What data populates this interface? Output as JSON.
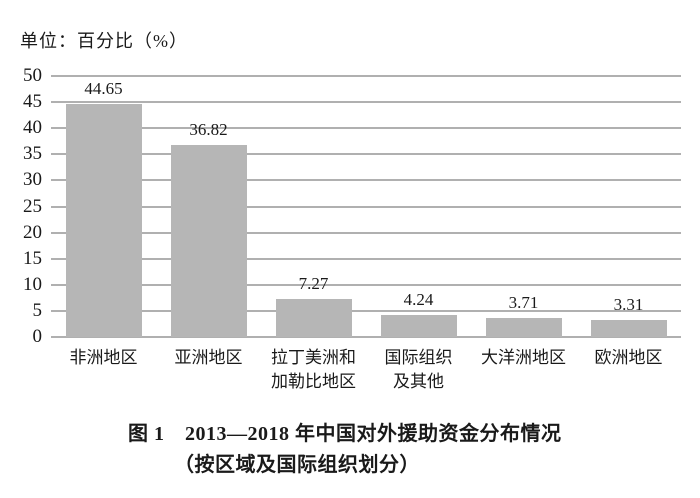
{
  "unit_label": "单位：百分比（%）",
  "caption": {
    "line1": "图 1　2013—2018 年中国对外援助资金分布情况",
    "line2": "（按区域及国际组织划分）"
  },
  "chart_data": {
    "type": "bar",
    "title": "图 1 2013—2018 年中国对外援助资金分布情况（按区域及国际组织划分）",
    "unit_label": "单位：百分比（%）",
    "categories": [
      "非洲地区",
      "亚洲地区",
      "拉丁美洲和\n加勒比地区",
      "国际组织\n及其他",
      "大洋洲地区",
      "欧洲地区"
    ],
    "values": [
      44.65,
      36.82,
      7.27,
      4.24,
      3.71,
      3.31
    ],
    "value_labels": [
      "44.65",
      "36.82",
      "7.27",
      "4.24",
      "3.71",
      "3.31"
    ],
    "ylabel": "",
    "xlabel": "",
    "ylim": [
      0,
      50
    ],
    "ytick_step": 5,
    "ytick_labels": [
      "0",
      "5",
      "10",
      "15",
      "20",
      "25",
      "30",
      "35",
      "40",
      "45",
      "50"
    ],
    "grid": true,
    "legend": false,
    "bar_color": "#b6b6b6",
    "gridline_color": "#b0b0b0"
  }
}
